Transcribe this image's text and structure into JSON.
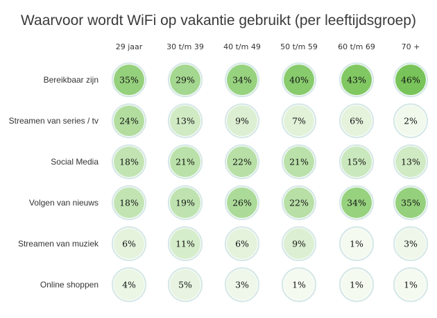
{
  "chart_data": {
    "type": "heatmap",
    "title": "Waarvoor wordt WiFi op vakantie gebruikt (per leeftijdsgroep)",
    "columns": [
      "29 jaar",
      "30 t/m 39",
      "40 t/m 49",
      "50 t/m 59",
      "60 t/m 69",
      "70 +"
    ],
    "rows": [
      "Bereikbaar zijn",
      "Streamen van series / tv",
      "Social Media",
      "Volgen van nieuws",
      "Streamen van muziek",
      "Online shoppen"
    ],
    "values": [
      [
        35,
        29,
        34,
        40,
        43,
        46
      ],
      [
        24,
        13,
        9,
        7,
        6,
        2
      ],
      [
        18,
        21,
        22,
        21,
        15,
        13
      ],
      [
        18,
        19,
        26,
        22,
        34,
        35
      ],
      [
        6,
        11,
        6,
        9,
        1,
        3
      ],
      [
        4,
        5,
        3,
        1,
        1,
        1
      ]
    ],
    "value_labels": [
      [
        "35%",
        "29%",
        "34%",
        "40%",
        "43%",
        "46%"
      ],
      [
        "24%",
        "13%",
        "9%",
        "7%",
        "6%",
        "2%"
      ],
      [
        "18%",
        "21%",
        "22%",
        "21%",
        "15%",
        "13%"
      ],
      [
        "18%",
        "19%",
        "26%",
        "22%",
        "34%",
        "35%"
      ],
      [
        "6%",
        "11%",
        "6%",
        "9%",
        "1%",
        "3%"
      ],
      [
        "4%",
        "5%",
        "3%",
        "1%",
        "1%",
        "1%"
      ]
    ],
    "unit": "%",
    "value_range": [
      0,
      50
    ],
    "colors": {
      "low": "#f9fcf6",
      "high": "#6fc04e",
      "ring": "#d5e8e6"
    }
  }
}
